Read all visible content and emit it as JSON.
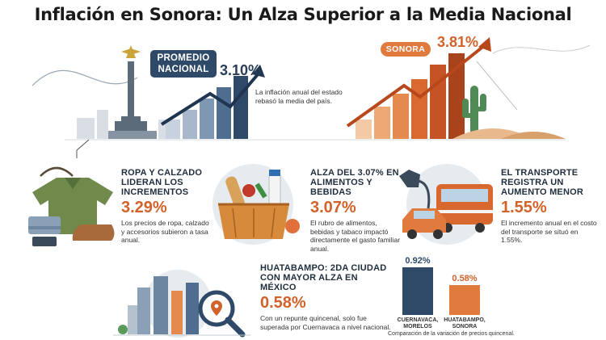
{
  "title": "Inflación en Sonora: Un Alza Superior a la Media Nacional",
  "nacional": {
    "label": "PROMEDIO NACIONAL",
    "value": "3.10%",
    "note": "La inflación anual del estado rebasó la media del país."
  },
  "sonora": {
    "label": "SONORA",
    "value": "3.81%"
  },
  "cards": [
    {
      "heading": "ROPA Y CALZADO LIDERAN LOS INCREMENTOS",
      "value": "3.29%",
      "desc": "Los precios de ropa, calzado y accesorios subieron a tasa anual."
    },
    {
      "heading": "ALZA DEL 3.07% EN ALIMENTOS Y BEBIDAS",
      "value": "3.07%",
      "desc": "El rubro de alimentos, bebidas y tabaco impactó directamente el gasto familiar anual."
    },
    {
      "heading": "EL TRANSPORTE REGISTRA UN AUMENTO MENOR",
      "value": "1.55%",
      "desc": "El incremento anual en el costo del transporte se situó en 1.55%."
    }
  ],
  "huatabampo": {
    "heading": "HUATABAMPO: 2DA CIUDAD CON MAYOR ALZA EN MÉXICO",
    "value": "0.58%",
    "desc": "Con un repunte quincenal, solo fue superada por Cuernavaca a nivel nacional."
  },
  "chart_data": {
    "type": "bar",
    "categories": [
      "CUERNAVACA, MORELOS",
      "HUATABAMPO, SONORA"
    ],
    "values": [
      0.92,
      0.58
    ],
    "value_labels": [
      "0.92%",
      "0.58%"
    ],
    "caption": "Comparación de la variación de precios quincenal.",
    "colors": [
      "#2f4a68",
      "#e07a3d"
    ],
    "ylim": [
      0,
      1
    ]
  }
}
